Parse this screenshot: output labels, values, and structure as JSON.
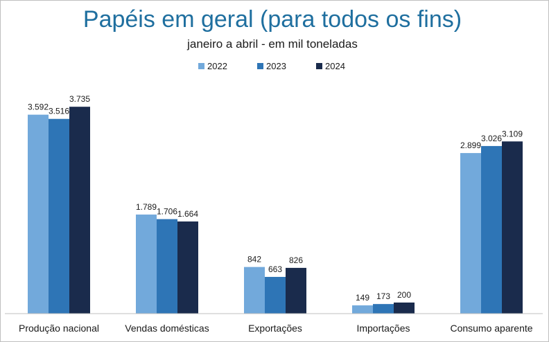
{
  "chart_data": {
    "type": "bar",
    "title": "Papéis em geral (para todos os fins)",
    "subtitle": "janeiro a abril  -  em mil toneladas",
    "categories": [
      "Produção nacional",
      "Vendas domésticas",
      "Exportações",
      "Importações",
      "Consumo aparente"
    ],
    "series": [
      {
        "name": "2022",
        "color": "#72a9db",
        "values": [
          3592,
          1789,
          842,
          149,
          2899
        ],
        "labels": [
          "3.592",
          "1.789",
          "842",
          "149",
          "2.899"
        ]
      },
      {
        "name": "2023",
        "color": "#2e75b6",
        "values": [
          3516,
          1706,
          663,
          173,
          3026
        ],
        "labels": [
          "3.516",
          "1.706",
          "663",
          "173",
          "3.026"
        ]
      },
      {
        "name": "2024",
        "color": "#1a2b4c",
        "values": [
          3735,
          1664,
          826,
          200,
          3109
        ],
        "labels": [
          "3.735",
          "1.664",
          "826",
          "200",
          "3.109"
        ]
      }
    ],
    "ylim": [
      0,
      4000
    ],
    "legend_position": "top-center",
    "grid": false
  }
}
